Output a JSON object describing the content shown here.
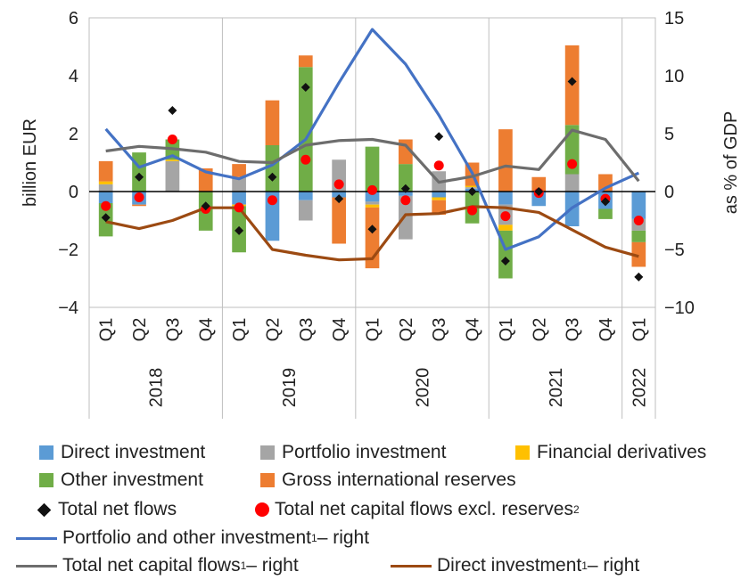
{
  "chart_data": {
    "type": "bar",
    "categories": [
      "Q1",
      "Q2",
      "Q3",
      "Q4",
      "Q1",
      "Q2",
      "Q3",
      "Q4",
      "Q1",
      "Q2",
      "Q3",
      "Q4",
      "Q1",
      "Q2",
      "Q3",
      "Q4",
      "Q1"
    ],
    "years": [
      {
        "label": "2018",
        "start": 0,
        "end": 4
      },
      {
        "label": "2019",
        "start": 4,
        "end": 8
      },
      {
        "label": "2020",
        "start": 8,
        "end": 12
      },
      {
        "label": "2021",
        "start": 12,
        "end": 16
      },
      {
        "label": "2022",
        "start": 16,
        "end": 17
      }
    ],
    "ylabel_left": "billion EUR",
    "ylabel_right": "as % of GDP",
    "ylim_left": [
      -4,
      6
    ],
    "ylim_right": [
      -10,
      15
    ],
    "yticks_left": [
      "6",
      "4",
      "2",
      "0",
      "−2",
      "−4"
    ],
    "yticks_right": [
      "15",
      "10",
      "5",
      "0",
      "−5",
      "−10"
    ],
    "bar_series": [
      {
        "name": "Direct investment",
        "color": "#5b9bd5",
        "values": [
          -0.4,
          -0.45,
          0.0,
          0.0,
          -0.45,
          -1.7,
          -0.3,
          -0.2,
          -0.35,
          -0.15,
          -0.2,
          0.1,
          -0.45,
          -0.5,
          -1.2,
          -0.6,
          -0.95
        ]
      },
      {
        "name": "Portfolio investment",
        "color": "#a5a5a5",
        "values": [
          0.25,
          0.0,
          1.05,
          0.0,
          0.5,
          0.0,
          -0.7,
          1.1,
          -0.1,
          -1.5,
          0.7,
          0.05,
          -0.7,
          0.0,
          0.6,
          0.0,
          -0.4
        ]
      },
      {
        "name": "Financial derivatives",
        "color": "#ffc000",
        "values": [
          0.1,
          0.0,
          0.05,
          0.0,
          -0.05,
          0.0,
          0.0,
          0.0,
          -0.1,
          0.0,
          -0.1,
          0.05,
          -0.2,
          0.0,
          0.0,
          0.0,
          0.0
        ]
      },
      {
        "name": "Other investment",
        "color": "#70ad47",
        "values": [
          -1.15,
          1.35,
          0.7,
          -1.35,
          -1.6,
          1.6,
          4.3,
          0.0,
          1.55,
          0.95,
          0.0,
          -1.1,
          -1.65,
          0.0,
          1.7,
          -0.35,
          -0.4
        ]
      },
      {
        "name": "Gross international reserves",
        "color": "#ed7d31",
        "values": [
          0.7,
          -0.05,
          0.0,
          0.8,
          0.45,
          1.55,
          0.4,
          -1.6,
          -2.1,
          0.85,
          -0.5,
          0.8,
          2.15,
          0.5,
          2.75,
          0.6,
          -0.85
        ]
      }
    ],
    "total_net_flows": {
      "name": "Total net flows",
      "values": [
        -0.9,
        0.5,
        2.8,
        -0.5,
        -1.35,
        0.5,
        3.6,
        -0.25,
        -1.3,
        0.1,
        1.9,
        0.0,
        -2.4,
        0.0,
        3.8,
        -0.35,
        -2.95
      ]
    },
    "total_net_ex_reserves": {
      "name": "Total net capital flows excl. reserves",
      "sup": "2",
      "values": [
        -0.5,
        -0.2,
        1.8,
        -0.6,
        -0.55,
        -0.3,
        1.1,
        0.25,
        0.05,
        -0.3,
        0.9,
        -0.65,
        -0.85,
        -0.05,
        0.95,
        -0.25,
        -1.0
      ]
    },
    "line_series": [
      {
        "name": "Portfolio and other investment",
        "sup": "1",
        "suffix": " – right",
        "color": "#4472c4",
        "values": [
          5.4,
          2.1,
          3.1,
          1.7,
          1.1,
          2.3,
          4.5,
          9.4,
          14.0,
          11.0,
          6.6,
          1.6,
          -5.0,
          -3.9,
          -1.4,
          0.3,
          1.6
        ]
      },
      {
        "name": "Total net capital flows",
        "sup": "1",
        "suffix": " – right",
        "color": "#6d6d6d",
        "values": [
          3.5,
          3.9,
          3.7,
          3.4,
          2.6,
          2.5,
          4.0,
          4.4,
          4.5,
          4.0,
          0.8,
          1.3,
          2.2,
          1.9,
          5.3,
          4.5,
          0.9
        ]
      },
      {
        "name": "Direct investment",
        "sup": "1",
        "suffix": " – right",
        "color": "#9c4a12",
        "values": [
          -2.6,
          -3.2,
          -2.5,
          -1.4,
          -1.4,
          -5.0,
          -5.5,
          -5.9,
          -5.8,
          -2.0,
          -1.9,
          -1.3,
          -1.4,
          -1.8,
          -3.3,
          -4.8,
          -5.6
        ]
      }
    ]
  }
}
